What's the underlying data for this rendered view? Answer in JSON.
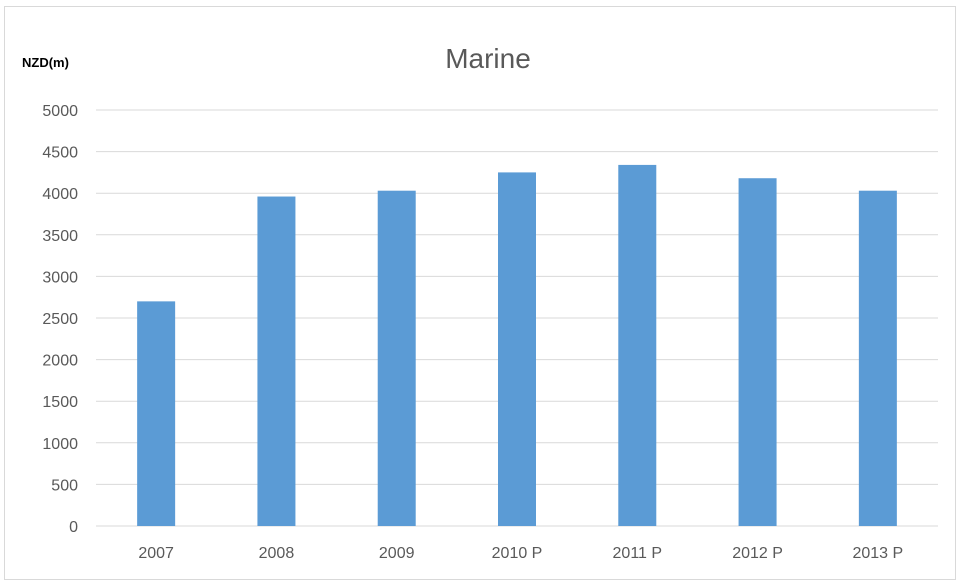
{
  "chart_data": {
    "type": "bar",
    "title": "Marine",
    "xlabel": "",
    "ylabel": "NZD(m)",
    "categories": [
      "2007",
      "2008",
      "2009",
      "2010 P",
      "2011 P",
      "2012 P",
      "2013 P"
    ],
    "values": [
      2700,
      3960,
      4030,
      4250,
      4340,
      4180,
      4030
    ],
    "ylim": [
      0,
      5000
    ],
    "yticks": [
      "0",
      "500",
      "1000",
      "1500",
      "2000",
      "2500",
      "3000",
      "3500",
      "4000",
      "4500",
      "5000"
    ],
    "grid": true,
    "legend": "none",
    "bar_color": "#5B9BD5",
    "grid_color": "#d9d9d9"
  }
}
